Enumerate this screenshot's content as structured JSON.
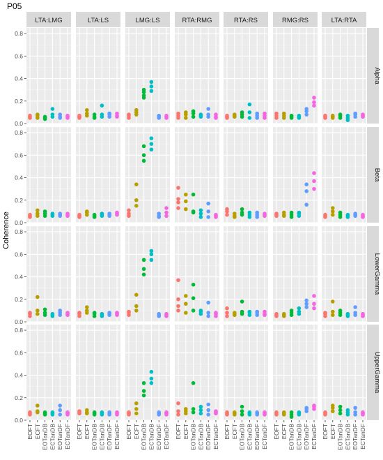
{
  "chart_data": {
    "type": "scatter",
    "title": "P05",
    "ylabel": "Coherence",
    "xlabel": "",
    "ylim": [
      0,
      0.85
    ],
    "yticks": [
      0.0,
      0.2,
      0.4,
      0.6,
      0.8
    ],
    "ytick_labels": [
      "0.0",
      "0.2",
      "0.4",
      "0.6",
      "0.8"
    ],
    "categories": [
      "EOFT",
      "ECFT",
      "EOTanDB",
      "ECTanDB",
      "EOTanDF",
      "ECTanDF"
    ],
    "category_colors": [
      "#F8766D",
      "#B79F00",
      "#00BA38",
      "#00BFC4",
      "#619CFF",
      "#F564E3"
    ],
    "columns": [
      "LTA:LMG",
      "LTA:LS",
      "LMG:LS",
      "RTA:RMG",
      "RTA:RS",
      "RMG:RS",
      "LTA:RTA"
    ],
    "rows": [
      "Alpha",
      "Beta",
      "LowerGamma",
      "UpperGamma"
    ],
    "grid": true,
    "legend": "none",
    "panels": {
      "Alpha": {
        "LTA:LMG": [
          [
            0.05,
            0.06,
            0.07
          ],
          [
            0.05,
            0.07,
            0.08
          ],
          [
            0.04,
            0.06,
            0.05
          ],
          [
            0.06,
            0.08,
            0.13
          ],
          [
            0.05,
            0.06,
            0.08
          ],
          [
            0.05,
            0.07,
            0.06
          ]
        ],
        "LTA:LS": [
          [
            0.05,
            0.06,
            0.07
          ],
          [
            0.07,
            0.09,
            0.12
          ],
          [
            0.05,
            0.06,
            0.08
          ],
          [
            0.06,
            0.08,
            0.16
          ],
          [
            0.06,
            0.08,
            0.09
          ],
          [
            0.06,
            0.07,
            0.09
          ]
        ],
        "LMG:LS": [
          [
            0.05,
            0.07,
            0.08
          ],
          [
            0.08,
            0.1,
            0.12
          ],
          [
            0.23,
            0.25,
            0.28,
            0.3
          ],
          [
            0.29,
            0.33,
            0.37
          ],
          [
            0.05,
            0.06,
            0.07
          ],
          [
            0.05,
            0.06,
            0.07
          ]
        ],
        "RTA:RMG": [
          [
            0.05,
            0.07,
            0.09
          ],
          [
            0.05,
            0.08,
            0.1
          ],
          [
            0.06,
            0.09,
            0.11
          ],
          [
            0.06,
            0.07,
            0.08
          ],
          [
            0.06,
            0.08,
            0.13
          ],
          [
            0.05,
            0.06,
            0.08
          ]
        ],
        "RTA:RS": [
          [
            0.05,
            0.06,
            0.07
          ],
          [
            0.06,
            0.07,
            0.08
          ],
          [
            0.06,
            0.08,
            0.1
          ],
          [
            0.05,
            0.1,
            0.17
          ],
          [
            0.05,
            0.07,
            0.09
          ],
          [
            0.05,
            0.07,
            0.09
          ]
        ],
        "RMG:RS": [
          [
            0.05,
            0.07,
            0.09
          ],
          [
            0.05,
            0.07,
            0.09
          ],
          [
            0.05,
            0.06,
            0.07
          ],
          [
            0.05,
            0.06,
            0.07
          ],
          [
            0.08,
            0.11,
            0.13
          ],
          [
            0.16,
            0.19,
            0.23
          ]
        ],
        "LTA:RTA": [
          [
            0.05,
            0.06,
            0.07
          ],
          [
            0.05,
            0.06,
            0.07
          ],
          [
            0.05,
            0.07,
            0.08
          ],
          [
            0.03,
            0.05,
            0.07
          ],
          [
            0.06,
            0.08,
            0.09
          ],
          [
            0.06,
            0.07,
            0.08
          ]
        ]
      },
      "Beta": {
        "LTA:LMG": [
          [
            0.05,
            0.06,
            0.07
          ],
          [
            0.06,
            0.08,
            0.11
          ],
          [
            0.06,
            0.08,
            0.1
          ],
          [
            0.06,
            0.07,
            0.08
          ],
          [
            0.06,
            0.07,
            0.08
          ],
          [
            0.06,
            0.07,
            0.08
          ]
        ],
        "LTA:LS": [
          [
            0.05,
            0.06,
            0.07
          ],
          [
            0.07,
            0.09,
            0.1
          ],
          [
            0.05,
            0.06,
            0.07
          ],
          [
            0.06,
            0.07,
            0.08
          ],
          [
            0.06,
            0.07,
            0.08
          ],
          [
            0.07,
            0.08,
            0.09
          ]
        ],
        "LMG:LS": [
          [
            0.06,
            0.08,
            0.11
          ],
          [
            0.15,
            0.2,
            0.34
          ],
          [
            0.55,
            0.6,
            0.68
          ],
          [
            0.65,
            0.7,
            0.75
          ],
          [
            0.05,
            0.06,
            0.08
          ],
          [
            0.06,
            0.09,
            0.13
          ]
        ],
        "RTA:RMG": [
          [
            0.13,
            0.18,
            0.21,
            0.31
          ],
          [
            0.12,
            0.19,
            0.25
          ],
          [
            0.09,
            0.1,
            0.25
          ],
          [
            0.05,
            0.08,
            0.11
          ],
          [
            0.05,
            0.1,
            0.17
          ],
          [
            0.05,
            0.06,
            0.07
          ]
        ],
        "RTA:RS": [
          [
            0.07,
            0.1,
            0.12
          ],
          [
            0.05,
            0.06,
            0.08
          ],
          [
            0.07,
            0.09,
            0.12
          ],
          [
            0.05,
            0.07,
            0.09
          ],
          [
            0.05,
            0.07,
            0.09
          ],
          [
            0.06,
            0.07,
            0.08
          ]
        ],
        "RMG:RS": [
          [
            0.06,
            0.07,
            0.08
          ],
          [
            0.06,
            0.07,
            0.09
          ],
          [
            0.05,
            0.07,
            0.09
          ],
          [
            0.06,
            0.08,
            0.09
          ],
          [
            0.16,
            0.28,
            0.34
          ],
          [
            0.3,
            0.37,
            0.44
          ]
        ],
        "LTA:RTA": [
          [
            0.05,
            0.06,
            0.07
          ],
          [
            0.07,
            0.1,
            0.13
          ],
          [
            0.05,
            0.07,
            0.09
          ],
          [
            0.05,
            0.06,
            0.07
          ],
          [
            0.06,
            0.07,
            0.08
          ],
          [
            0.05,
            0.06,
            0.07
          ]
        ]
      },
      "LowerGamma": {
        "LTA:LMG": [
          [
            0.05,
            0.07,
            0.08
          ],
          [
            0.07,
            0.1,
            0.22
          ],
          [
            0.06,
            0.08,
            0.11
          ],
          [
            0.05,
            0.06,
            0.07
          ],
          [
            0.06,
            0.08,
            0.1
          ],
          [
            0.06,
            0.07,
            0.08
          ]
        ],
        "LTA:LS": [
          [
            0.05,
            0.07,
            0.08
          ],
          [
            0.08,
            0.1,
            0.13
          ],
          [
            0.05,
            0.07,
            0.08
          ],
          [
            0.05,
            0.06,
            0.07
          ],
          [
            0.06,
            0.07,
            0.08
          ],
          [
            0.06,
            0.07,
            0.08
          ]
        ],
        "LMG:LS": [
          [
            0.06,
            0.08,
            0.09
          ],
          [
            0.1,
            0.14,
            0.24
          ],
          [
            0.42,
            0.47,
            0.55
          ],
          [
            0.55,
            0.6,
            0.63
          ],
          [
            0.05,
            0.06,
            0.07
          ],
          [
            0.05,
            0.06,
            0.07
          ]
        ],
        "RTA:RMG": [
          [
            0.1,
            0.14,
            0.2,
            0.37
          ],
          [
            0.08,
            0.16,
            0.23
          ],
          [
            0.1,
            0.21,
            0.33
          ],
          [
            0.07,
            0.09,
            0.1
          ],
          [
            0.05,
            0.08,
            0.17
          ],
          [
            0.05,
            0.07,
            0.08
          ]
        ],
        "RTA:RS": [
          [
            0.05,
            0.08,
            0.12
          ],
          [
            0.06,
            0.07,
            0.08
          ],
          [
            0.07,
            0.09,
            0.18
          ],
          [
            0.06,
            0.08,
            0.09
          ],
          [
            0.06,
            0.08,
            0.09
          ],
          [
            0.06,
            0.07,
            0.09
          ]
        ],
        "RMG:RS": [
          [
            0.05,
            0.06,
            0.07
          ],
          [
            0.05,
            0.06,
            0.07
          ],
          [
            0.06,
            0.08,
            0.1
          ],
          [
            0.07,
            0.09,
            0.12
          ],
          [
            0.13,
            0.16,
            0.19
          ],
          [
            0.12,
            0.16,
            0.23
          ]
        ],
        "LTA:RTA": [
          [
            0.05,
            0.07,
            0.08
          ],
          [
            0.06,
            0.09,
            0.18
          ],
          [
            0.06,
            0.08,
            0.1
          ],
          [
            0.05,
            0.06,
            0.07
          ],
          [
            0.06,
            0.08,
            0.13
          ],
          [
            0.05,
            0.06,
            0.07
          ]
        ]
      },
      "UpperGamma": {
        "LTA:LMG": [
          [
            0.05,
            0.06,
            0.07
          ],
          [
            0.07,
            0.08,
            0.13
          ],
          [
            0.05,
            0.06,
            0.07
          ],
          [
            0.05,
            0.06,
            0.07
          ],
          [
            0.05,
            0.09,
            0.13
          ],
          [
            0.05,
            0.06,
            0.07
          ]
        ],
        "LTA:LS": [
          [
            0.06,
            0.07,
            0.08
          ],
          [
            0.06,
            0.07,
            0.09
          ],
          [
            0.05,
            0.06,
            0.07
          ],
          [
            0.05,
            0.06,
            0.07
          ],
          [
            0.05,
            0.06,
            0.07
          ],
          [
            0.05,
            0.06,
            0.07
          ]
        ],
        "LMG:LS": [
          [
            0.05,
            0.06,
            0.07
          ],
          [
            0.06,
            0.1,
            0.15
          ],
          [
            0.22,
            0.26,
            0.33
          ],
          [
            0.33,
            0.37,
            0.43
          ],
          [
            0.05,
            0.06,
            0.07
          ],
          [
            0.05,
            0.06,
            0.07
          ]
        ],
        "RTA:RMG": [
          [
            0.05,
            0.08,
            0.15
          ],
          [
            0.06,
            0.08,
            0.1
          ],
          [
            0.07,
            0.1,
            0.33
          ],
          [
            0.06,
            0.09,
            0.12
          ],
          [
            0.05,
            0.09,
            0.14
          ],
          [
            0.06,
            0.07,
            0.08
          ]
        ],
        "RTA:RS": [
          [
            0.05,
            0.06,
            0.07
          ],
          [
            0.05,
            0.06,
            0.07
          ],
          [
            0.05,
            0.08,
            0.12
          ],
          [
            0.05,
            0.06,
            0.07
          ],
          [
            0.05,
            0.06,
            0.07
          ],
          [
            0.05,
            0.06,
            0.07
          ]
        ],
        "RMG:RS": [
          [
            0.05,
            0.06,
            0.07
          ],
          [
            0.05,
            0.06,
            0.07
          ],
          [
            0.03,
            0.05,
            0.07
          ],
          [
            0.05,
            0.06,
            0.07
          ],
          [
            0.08,
            0.1,
            0.11
          ],
          [
            0.1,
            0.12,
            0.13
          ]
        ],
        "LTA:RTA": [
          [
            0.05,
            0.06,
            0.07
          ],
          [
            0.08,
            0.11,
            0.13
          ],
          [
            0.06,
            0.09,
            0.12
          ],
          [
            0.05,
            0.07,
            0.09
          ],
          [
            0.05,
            0.07,
            0.11
          ],
          [
            0.05,
            0.06,
            0.07
          ]
        ]
      }
    }
  }
}
